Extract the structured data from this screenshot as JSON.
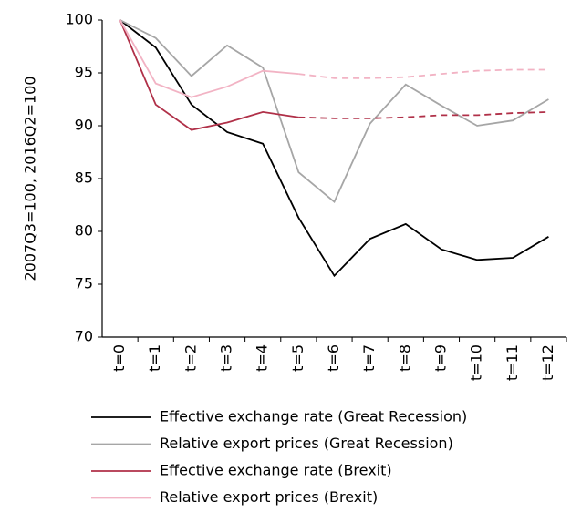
{
  "chart_data": {
    "type": "line",
    "y_label": "2007Q3=100, 2016Q2=100",
    "categories": [
      "t=0",
      "t=1",
      "t=2",
      "t=3",
      "t=4",
      "t=5",
      "t=6",
      "t=7",
      "t=8",
      "t=9",
      "t=10",
      "t=11",
      "t=12"
    ],
    "series": [
      {
        "name": "Effective exchange rate (Great Recession)",
        "color": "#000000",
        "values": [
          100,
          97.4,
          92,
          89.4,
          88.3,
          81.3,
          75.8,
          79.3,
          80.7,
          78.3,
          77.3,
          77.5,
          79.5
        ]
      },
      {
        "name": "Relative export prices (Great Recession)",
        "color": "#a6a6a6",
        "values": [
          100,
          98.3,
          94.7,
          97.6,
          95.5,
          85.6,
          82.8,
          90.2,
          93.9,
          91.9,
          90,
          90.5,
          92.5
        ]
      },
      {
        "name": "Effective exchange rate (Brexit)",
        "color": "#b03048",
        "dashed_from": 5,
        "values": [
          100,
          92,
          89.6,
          90.3,
          91.3,
          90.8,
          90.7,
          90.7,
          90.8,
          91,
          91,
          91.2,
          91.3
        ]
      },
      {
        "name": "Relative export prices (Brexit)",
        "color": "#f2b3c4",
        "dashed_from": 5,
        "values": [
          100,
          94,
          92.7,
          93.7,
          95.2,
          94.9,
          94.5,
          94.5,
          94.6,
          94.9,
          95.2,
          95.3,
          95.3
        ]
      }
    ],
    "ylim": [
      70,
      100
    ],
    "yticks": [
      70,
      75,
      80,
      85,
      90,
      95,
      100
    ],
    "grid": false,
    "legend": "bottom"
  }
}
